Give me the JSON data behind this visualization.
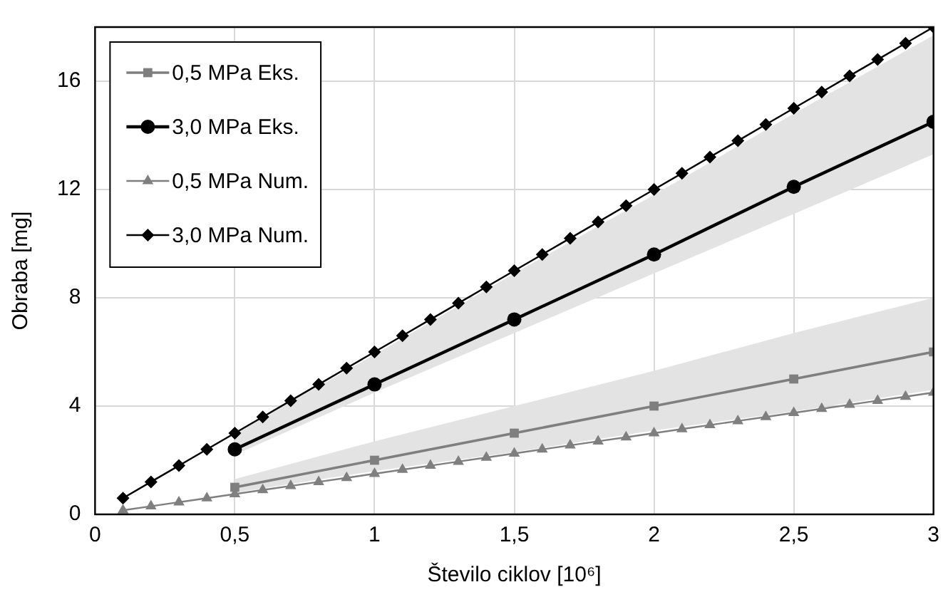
{
  "chart_data": {
    "type": "line",
    "xlabel": "Število ciklov [10⁶]",
    "ylabel": "Obraba [mg]",
    "xlim": [
      0,
      3
    ],
    "xticks": [
      0,
      {
        "value": 0.5,
        "label": "0,5"
      },
      1,
      {
        "value": 1.5,
        "label": "1,5"
      },
      2,
      {
        "value": 2.5,
        "label": "2,5"
      },
      3
    ],
    "ylim": [
      0,
      18
    ],
    "yticks": [
      0,
      4,
      8,
      12,
      16
    ],
    "grid": true,
    "legend": "top left",
    "line_style": "solid",
    "series": [
      {
        "name": "0,5 MPa Eks.",
        "color": "#7f7f7f",
        "marker": "square",
        "x": [
          0.5,
          1,
          1.5,
          2,
          2.5,
          3
        ],
        "values": [
          1,
          2,
          3,
          4,
          5,
          6
        ],
        "lower": [
          0.8,
          1.6,
          2.3,
          3.1,
          3.8,
          4.6
        ],
        "upper": [
          1.3,
          2.7,
          4.0,
          5.3,
          6.7,
          8.0
        ]
      },
      {
        "name": "3,0 MPa Eks.",
        "color": "#000000",
        "marker": "circle",
        "x": [
          0.5,
          1,
          1.5,
          2,
          2.5,
          3
        ],
        "values": [
          2.4,
          4.8,
          7.2,
          9.6,
          12.1,
          14.5
        ],
        "lower": [
          2.2,
          4.5,
          6.7,
          8.9,
          11.1,
          13.3
        ],
        "upper": [
          3.0,
          5.9,
          8.9,
          11.8,
          14.8,
          17.7
        ]
      },
      {
        "name": "0,5 MPa Num.",
        "color": "#7f7f7f",
        "marker": "triangle",
        "x": [
          0.1,
          0.2,
          0.3,
          0.4,
          0.5,
          0.6,
          0.7,
          0.8,
          0.9,
          1,
          1.1,
          1.2,
          1.3,
          1.4,
          1.5,
          1.6,
          1.7,
          1.8,
          1.9,
          2,
          2.1,
          2.2,
          2.3,
          2.4,
          2.5,
          2.6,
          2.7,
          2.8,
          2.9,
          3
        ],
        "values": [
          0.15,
          0.3,
          0.45,
          0.6,
          0.75,
          0.9,
          1.05,
          1.2,
          1.35,
          1.5,
          1.65,
          1.8,
          1.95,
          2.1,
          2.25,
          2.4,
          2.55,
          2.7,
          2.85,
          3,
          3.15,
          3.3,
          3.45,
          3.6,
          3.75,
          3.9,
          4.05,
          4.2,
          4.35,
          4.5
        ]
      },
      {
        "name": "3,0 MPa Num.",
        "color": "#000000",
        "marker": "diamond",
        "x": [
          0.1,
          0.2,
          0.3,
          0.4,
          0.5,
          0.6,
          0.7,
          0.8,
          0.9,
          1,
          1.1,
          1.2,
          1.3,
          1.4,
          1.5,
          1.6,
          1.7,
          1.8,
          1.9,
          2,
          2.1,
          2.2,
          2.3,
          2.4,
          2.5,
          2.6,
          2.7,
          2.8,
          2.9,
          3
        ],
        "values": [
          0.6,
          1.2,
          1.8,
          2.4,
          3,
          3.6,
          4.2,
          4.8,
          5.4,
          6,
          6.6,
          7.2,
          7.8,
          8.4,
          9,
          9.6,
          10.2,
          10.8,
          11.4,
          12,
          12.6,
          13.2,
          13.8,
          14.4,
          15,
          15.6,
          16.2,
          16.8,
          17.4,
          18
        ]
      }
    ]
  }
}
